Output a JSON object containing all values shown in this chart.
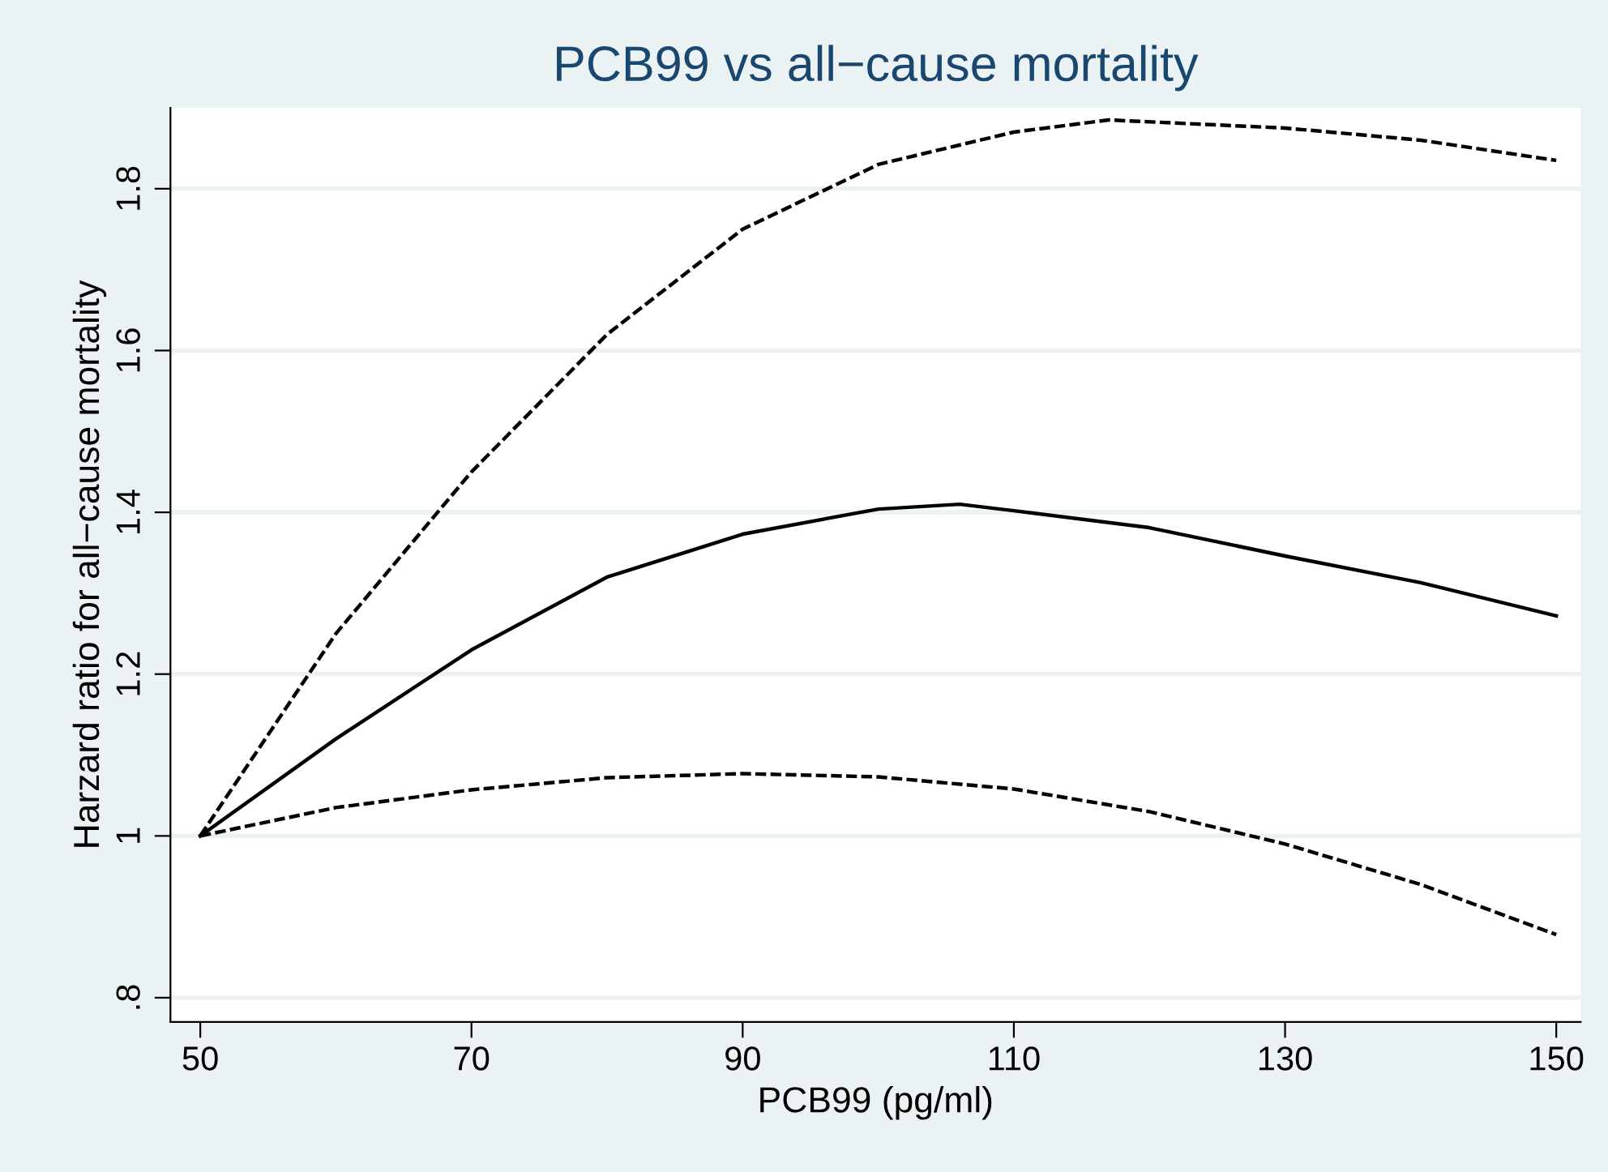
{
  "chart_data": {
    "type": "line",
    "title": "PCB99 vs all−cause mortality",
    "xlabel": "PCB99 (pg/ml)",
    "ylabel": "Harzard ratio for all−cause mortality",
    "xlim": [
      47.8,
      151.8
    ],
    "xticks": [
      50,
      70,
      90,
      110,
      130,
      150
    ],
    "ylim": [
      0.77,
      1.9
    ],
    "yticks": [
      {
        "value": 0.8,
        "label": ".8"
      },
      {
        "value": 1,
        "label": "1"
      },
      1.2,
      1.4,
      1.6,
      1.8
    ],
    "grid": "y",
    "legend": false,
    "marker": "none",
    "series": [
      {
        "color": "#000000",
        "line_style": "dashed",
        "x": [
          50,
          60,
          70,
          80,
          90,
          100,
          110,
          117,
          130,
          140,
          150
        ],
        "values": [
          1.0,
          1.25,
          1.45,
          1.62,
          1.75,
          1.83,
          1.87,
          1.885,
          1.875,
          1.86,
          1.835
        ]
      },
      {
        "color": "#000000",
        "line_style": "solid",
        "x": [
          50,
          60,
          70,
          80,
          90,
          100,
          106,
          110,
          120,
          130,
          140,
          150
        ],
        "values": [
          1.0,
          1.12,
          1.23,
          1.32,
          1.373,
          1.404,
          1.41,
          1.402,
          1.381,
          1.346,
          1.313,
          1.272
        ]
      },
      {
        "color": "#000000",
        "line_style": "dashed",
        "x": [
          50,
          60,
          70,
          80,
          90,
          100,
          110,
          120,
          130,
          140,
          150
        ],
        "values": [
          1.0,
          1.035,
          1.057,
          1.072,
          1.077,
          1.073,
          1.058,
          1.03,
          0.99,
          0.94,
          0.878
        ]
      }
    ]
  }
}
